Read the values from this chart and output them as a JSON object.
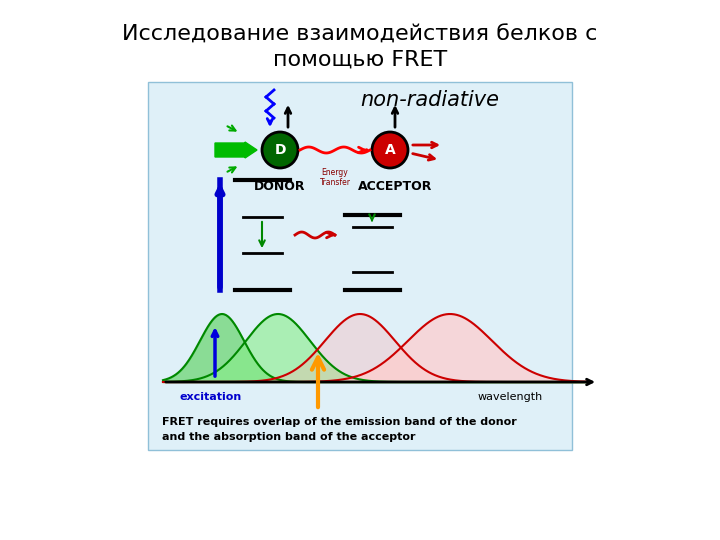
{
  "title_line1": "Исследование взаимодействия белков с",
  "title_line2": "помощью FRET",
  "title_fontsize": 16,
  "bg_color": "#ffffff",
  "panel_bg": "#dff0f8",
  "panel_border": "#90c0d8",
  "non_radiative_text": "non-radiative",
  "donor_text": "DONOR",
  "acceptor_text": "ACCEPTOR",
  "energy_transfer_text": "Energy\nTransfer",
  "excitation_text": "excitation",
  "wavelength_text": "wavelength",
  "caption_line1": "FRET requires overlap of the emission band of the donor",
  "caption_line2": "and the absorption band of the acceptor"
}
